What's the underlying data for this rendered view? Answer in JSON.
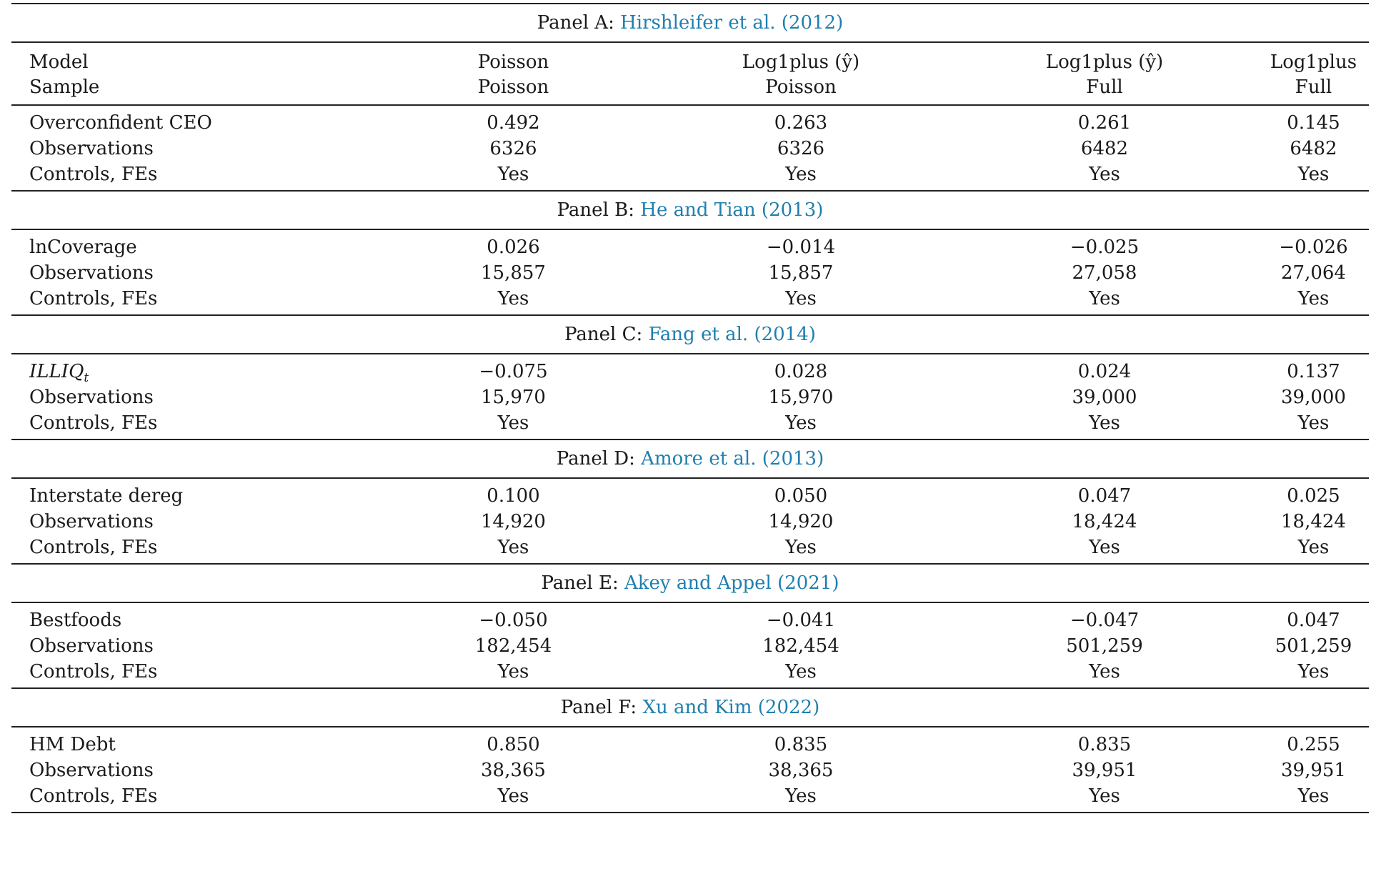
{
  "header": {
    "rows": [
      {
        "label": "Model",
        "cells": [
          "Poisson",
          "Log1plus (ŷ)",
          "Log1plus (ŷ)",
          "Log1plus"
        ]
      },
      {
        "label": "Sample",
        "cells": [
          "Poisson",
          "Poisson",
          "Full",
          "Full"
        ]
      }
    ]
  },
  "panels": [
    {
      "prefix": "Panel A: ",
      "citation": "Hirshleifer et al. (2012)",
      "rows": [
        {
          "label": "Overconfident CEO",
          "cells": [
            "0.492",
            "0.263",
            "0.261",
            "0.145"
          ]
        },
        {
          "label": "Observations",
          "cells": [
            "6326",
            "6326",
            "6482",
            "6482"
          ]
        },
        {
          "label": "Controls, FEs",
          "cells": [
            "Yes",
            "Yes",
            "Yes",
            "Yes"
          ]
        }
      ]
    },
    {
      "prefix": "Panel B: ",
      "citation": "He and Tian (2013)",
      "rows": [
        {
          "label": "lnCoverage",
          "cells": [
            "0.026",
            "−0.014",
            "−0.025",
            "−0.026"
          ]
        },
        {
          "label": "Observations",
          "cells": [
            "15,857",
            "15,857",
            "27,058",
            "27,064"
          ]
        },
        {
          "label": "Controls, FEs",
          "cells": [
            "Yes",
            "Yes",
            "Yes",
            "Yes"
          ]
        }
      ]
    },
    {
      "prefix": "Panel C: ",
      "citation": "Fang et al. (2014)",
      "rows": [
        {
          "label": "ILLIQ",
          "label_sub": "t",
          "cells": [
            "−0.075",
            "0.028",
            "0.024",
            "0.137"
          ]
        },
        {
          "label": "Observations",
          "cells": [
            "15,970",
            "15,970",
            "39,000",
            "39,000"
          ]
        },
        {
          "label": "Controls, FEs",
          "cells": [
            "Yes",
            "Yes",
            "Yes",
            "Yes"
          ]
        }
      ]
    },
    {
      "prefix": "Panel D: ",
      "citation": "Amore et al. (2013)",
      "rows": [
        {
          "label": "Interstate dereg",
          "cells": [
            "0.100",
            "0.050",
            "0.047",
            "0.025"
          ]
        },
        {
          "label": "Observations",
          "cells": [
            "14,920",
            "14,920",
            "18,424",
            "18,424"
          ]
        },
        {
          "label": "Controls, FEs",
          "cells": [
            "Yes",
            "Yes",
            "Yes",
            "Yes"
          ]
        }
      ]
    },
    {
      "prefix": "Panel E: ",
      "citation": "Akey and Appel (2021)",
      "rows": [
        {
          "label": "Bestfoods",
          "cells": [
            "−0.050",
            "−0.041",
            "−0.047",
            "0.047"
          ]
        },
        {
          "label": "Observations",
          "cells": [
            "182,454",
            "182,454",
            "501,259",
            "501,259"
          ]
        },
        {
          "label": "Controls, FEs",
          "cells": [
            "Yes",
            "Yes",
            "Yes",
            "Yes"
          ]
        }
      ]
    },
    {
      "prefix": "Panel F: ",
      "citation": "Xu and Kim (2022)",
      "rows": [
        {
          "label": "HM Debt",
          "cells": [
            "0.850",
            "0.835",
            "0.835",
            "0.255"
          ]
        },
        {
          "label": "Observations",
          "cells": [
            "38,365",
            "38,365",
            "39,951",
            "39,951"
          ]
        },
        {
          "label": "Controls, FEs",
          "cells": [
            "Yes",
            "Yes",
            "Yes",
            "Yes"
          ]
        }
      ]
    }
  ],
  "colors": {
    "citation": "#1f7fae",
    "rule": "#222222"
  }
}
